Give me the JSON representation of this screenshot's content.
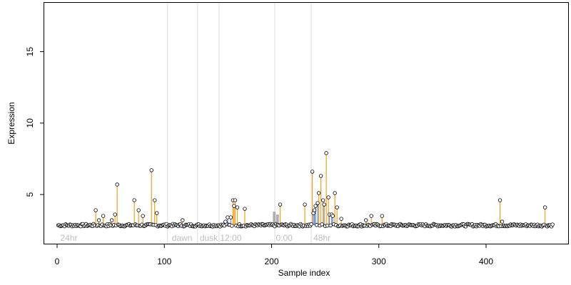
{
  "chart_data": {
    "type": "scatter",
    "title": "",
    "xlabel": "Sample index",
    "ylabel": "Expression",
    "xlim": [
      0,
      460
    ],
    "ylim": [
      2.0,
      18.5
    ],
    "xticks": [
      0,
      100,
      200,
      300,
      400
    ],
    "yticks": [
      5,
      10,
      15
    ],
    "grid": false,
    "baseline": 2.85,
    "colors": {
      "point_fill": "#ffffff",
      "point_stroke": "#000000",
      "high_stem": "#f0a020",
      "mid_stem": "#6a8fd0",
      "gray_bar": "#b0b0b0",
      "vline": "#dcdcdc",
      "annotation": "#bdbdbd"
    },
    "vlines": [
      103,
      131,
      151,
      203,
      237
    ],
    "annotations": [
      {
        "label": "24hr",
        "x": 3
      },
      {
        "label": "dawn",
        "x": 107
      },
      {
        "label": "dusk",
        "x": 133
      },
      {
        "label": "12:00",
        "x": 152
      },
      {
        "label": "0:00",
        "x": 204
      },
      {
        "label": "48hr",
        "x": 239
      }
    ],
    "high_points": [
      {
        "x": 36,
        "y": 3.9
      },
      {
        "x": 39,
        "y": 3.2
      },
      {
        "x": 43,
        "y": 3.5
      },
      {
        "x": 51,
        "y": 3.2
      },
      {
        "x": 54,
        "y": 3.6
      },
      {
        "x": 56,
        "y": 5.7
      },
      {
        "x": 72,
        "y": 4.6
      },
      {
        "x": 76,
        "y": 3.9
      },
      {
        "x": 80,
        "y": 3.5
      },
      {
        "x": 88,
        "y": 6.7
      },
      {
        "x": 91,
        "y": 4.6
      },
      {
        "x": 93,
        "y": 3.7
      },
      {
        "x": 117,
        "y": 3.2
      },
      {
        "x": 164,
        "y": 4.6
      },
      {
        "x": 165,
        "y": 4.2
      },
      {
        "x": 166,
        "y": 4.6
      },
      {
        "x": 168,
        "y": 4.1
      },
      {
        "x": 175,
        "y": 4.0
      },
      {
        "x": 208,
        "y": 4.3
      },
      {
        "x": 231,
        "y": 4.3
      },
      {
        "x": 238,
        "y": 6.6
      },
      {
        "x": 244,
        "y": 5.1
      },
      {
        "x": 246,
        "y": 6.3
      },
      {
        "x": 248,
        "y": 4.6
      },
      {
        "x": 251,
        "y": 7.9
      },
      {
        "x": 253,
        "y": 4.8
      },
      {
        "x": 259,
        "y": 5.1
      },
      {
        "x": 261,
        "y": 4.1
      },
      {
        "x": 265,
        "y": 3.3
      },
      {
        "x": 288,
        "y": 3.2
      },
      {
        "x": 293,
        "y": 3.5
      },
      {
        "x": 303,
        "y": 3.5
      },
      {
        "x": 413,
        "y": 4.6
      },
      {
        "x": 415,
        "y": 3.1
      },
      {
        "x": 455,
        "y": 4.1
      }
    ],
    "mid_points": [
      {
        "x": 157,
        "y": 3.1
      },
      {
        "x": 159,
        "y": 3.4
      },
      {
        "x": 162,
        "y": 3.4
      },
      {
        "x": 239,
        "y": 3.7
      },
      {
        "x": 240,
        "y": 3.9
      },
      {
        "x": 241,
        "y": 4.2
      },
      {
        "x": 243,
        "y": 4.4
      },
      {
        "x": 249,
        "y": 4.3
      },
      {
        "x": 254,
        "y": 3.6
      },
      {
        "x": 256,
        "y": 3.6
      },
      {
        "x": 257,
        "y": 3.5
      }
    ],
    "gray_bars": [
      {
        "x": 202,
        "y": 3.8
      },
      {
        "x": 203,
        "y": 3.8
      },
      {
        "x": 205,
        "y": 3.6
      },
      {
        "x": 206,
        "y": 3.6
      }
    ]
  }
}
